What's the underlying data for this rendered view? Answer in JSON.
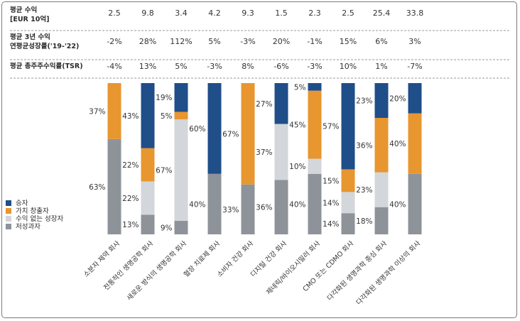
{
  "colors": {
    "winner": "#1f4e89",
    "value_creator": "#e8962f",
    "growth_without_value": "#d3d6da",
    "underperformer": "#8e9399",
    "divider": "#9a9a9a"
  },
  "table": {
    "rows": [
      {
        "label_lines": [
          "평균 수익",
          "[EUR 10억]"
        ],
        "values": [
          "2.5",
          "9.8",
          "3.4",
          "4.2",
          "9.3",
          "1.5",
          "2.3",
          "2.5",
          "25.4",
          "33.8"
        ]
      },
      {
        "label_lines": [
          "평균 3년 수익",
          "연평균성장률('19-'22)"
        ],
        "values": [
          "-2%",
          "28%",
          "112%",
          "5%",
          "-3%",
          "20%",
          "-1%",
          "15%",
          "6%",
          "3%"
        ]
      },
      {
        "label_lines": [
          "평균 총주주수익률(TSR)"
        ],
        "values": [
          "-4%",
          "13%",
          "5%",
          "-3%",
          "8%",
          "-6%",
          "-3%",
          "10%",
          "1%",
          "-7%"
        ]
      }
    ]
  },
  "legend": {
    "items": [
      {
        "label": "승자",
        "color_key": "winner"
      },
      {
        "label": "가치 창출자",
        "color_key": "value_creator"
      },
      {
        "label": "수익 없는 성장자",
        "color_key": "growth_without_value"
      },
      {
        "label": "저성과자",
        "color_key": "underperformer"
      }
    ]
  },
  "chart_data": {
    "type": "bar",
    "stacked": true,
    "unit": "%",
    "ylim": [
      0,
      100
    ],
    "categories": [
      "소분자 제약 회사",
      "전통적인 생명공학 회사",
      "새로운 방식의 생명공학 회사",
      "혈장 치료제 회사",
      "소비자 건강 회사",
      "디지털 건강 회사",
      "제네릭/바이오시밀러 회사",
      "CMO 또는 CDMO 회사",
      "다각화된 생명과학 중심 회사",
      "다각화된 생명과학 이상의 회사"
    ],
    "series": [
      {
        "name": "저성과자",
        "color_key": "underperformer",
        "values": [
          63,
          13,
          9,
          40,
          33,
          36,
          40,
          14,
          18,
          40
        ]
      },
      {
        "name": "수익 없는 성장자",
        "color_key": "growth_without_value",
        "values": [
          0,
          22,
          67,
          0,
          0,
          37,
          10,
          14,
          23,
          0
        ]
      },
      {
        "name": "가치 창출자",
        "color_key": "value_creator",
        "values": [
          37,
          22,
          5,
          0,
          67,
          0,
          45,
          15,
          36,
          40
        ]
      },
      {
        "name": "승자",
        "color_key": "winner",
        "values": [
          0,
          43,
          19,
          60,
          0,
          27,
          5,
          57,
          23,
          20
        ]
      }
    ],
    "value_labels": [
      [
        "63%",
        "",
        "37%",
        ""
      ],
      [
        "13%",
        "22%",
        "22%",
        "43%"
      ],
      [
        "9%",
        "67%",
        "5%",
        "19%"
      ],
      [
        "40%",
        "",
        "",
        "60%"
      ],
      [
        "33%",
        "",
        "67%",
        ""
      ],
      [
        "36%",
        "37%",
        "",
        "27%"
      ],
      [
        "40%",
        "10%",
        "45%",
        "5%"
      ],
      [
        "14%",
        "14%",
        "15%",
        "57%"
      ],
      [
        "18%",
        "23%",
        "36%",
        "23%"
      ],
      [
        "40%",
        "",
        "40%",
        "20%"
      ]
    ]
  }
}
